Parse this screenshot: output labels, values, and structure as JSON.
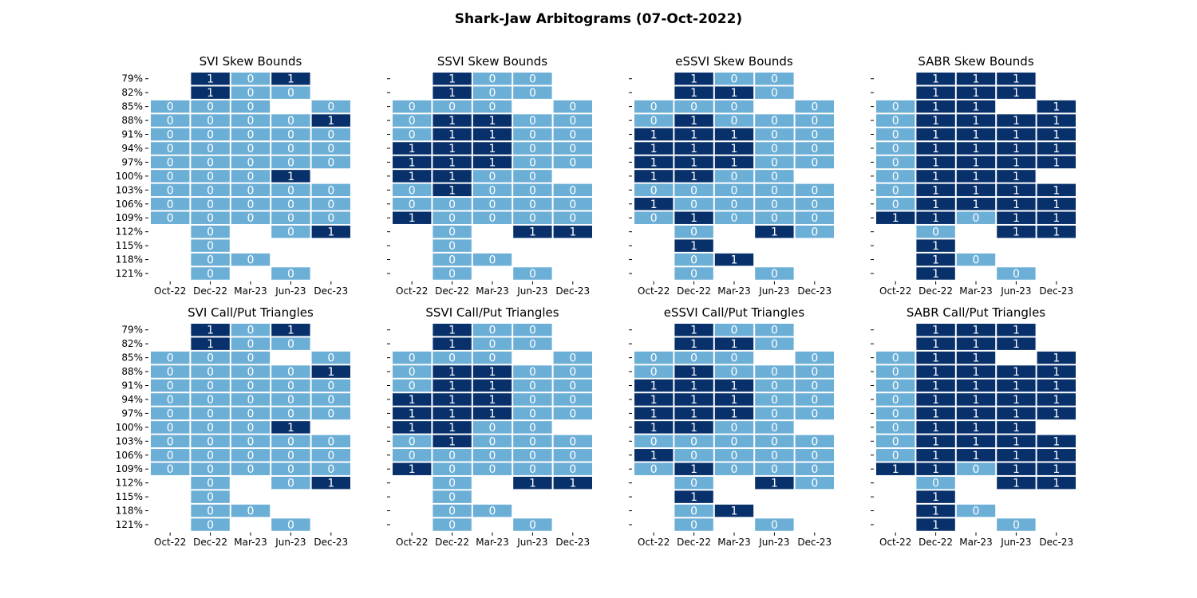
{
  "figure_title": "Shark-Jaw Arbitograms (07-Oct-2022)",
  "colors": {
    "zero": "#6baed6",
    "one": "#08306b",
    "zero_text": "#ffffff",
    "one_text": "#ffffff"
  },
  "chart_data": [
    {
      "type": "heatmap",
      "title": "SVI Skew Bounds",
      "xlabel": "",
      "ylabel": "",
      "x": [
        "Oct-22",
        "Dec-22",
        "Mar-23",
        "Jun-23",
        "Dec-23"
      ],
      "y": [
        "79%",
        "82%",
        "85%",
        "88%",
        "91%",
        "94%",
        "97%",
        "100%",
        "103%",
        "106%",
        "109%",
        "112%",
        "115%",
        "118%",
        "121%"
      ],
      "show_y_labels": true,
      "values": [
        [
          null,
          1,
          0,
          1,
          null
        ],
        [
          null,
          1,
          0,
          0,
          null
        ],
        [
          0,
          0,
          0,
          null,
          0
        ],
        [
          0,
          0,
          0,
          0,
          1
        ],
        [
          0,
          0,
          0,
          0,
          0
        ],
        [
          0,
          0,
          0,
          0,
          0
        ],
        [
          0,
          0,
          0,
          0,
          0
        ],
        [
          0,
          0,
          0,
          1,
          null
        ],
        [
          0,
          0,
          0,
          0,
          0
        ],
        [
          0,
          0,
          0,
          0,
          0
        ],
        [
          0,
          0,
          0,
          0,
          0
        ],
        [
          null,
          0,
          null,
          0,
          1
        ],
        [
          null,
          0,
          null,
          null,
          null
        ],
        [
          null,
          0,
          0,
          null,
          null
        ],
        [
          null,
          0,
          null,
          0,
          null
        ]
      ]
    },
    {
      "type": "heatmap",
      "title": "SSVI Skew Bounds",
      "xlabel": "",
      "ylabel": "",
      "x": [
        "Oct-22",
        "Dec-22",
        "Mar-23",
        "Jun-23",
        "Dec-23"
      ],
      "y": [
        "79%",
        "82%",
        "85%",
        "88%",
        "91%",
        "94%",
        "97%",
        "100%",
        "103%",
        "106%",
        "109%",
        "112%",
        "115%",
        "118%",
        "121%"
      ],
      "show_y_labels": false,
      "values": [
        [
          null,
          1,
          0,
          0,
          null
        ],
        [
          null,
          1,
          0,
          0,
          null
        ],
        [
          0,
          0,
          0,
          null,
          0
        ],
        [
          0,
          1,
          1,
          0,
          0
        ],
        [
          0,
          1,
          1,
          0,
          0
        ],
        [
          1,
          1,
          1,
          0,
          0
        ],
        [
          1,
          1,
          1,
          0,
          0
        ],
        [
          1,
          1,
          0,
          0,
          null
        ],
        [
          0,
          1,
          0,
          0,
          0
        ],
        [
          0,
          0,
          0,
          0,
          0
        ],
        [
          1,
          0,
          0,
          0,
          0
        ],
        [
          null,
          0,
          null,
          1,
          1
        ],
        [
          null,
          0,
          null,
          null,
          null
        ],
        [
          null,
          0,
          0,
          null,
          null
        ],
        [
          null,
          0,
          null,
          0,
          null
        ]
      ]
    },
    {
      "type": "heatmap",
      "title": "eSSVI Skew Bounds",
      "xlabel": "",
      "ylabel": "",
      "x": [
        "Oct-22",
        "Dec-22",
        "Mar-23",
        "Jun-23",
        "Dec-23"
      ],
      "y": [
        "79%",
        "82%",
        "85%",
        "88%",
        "91%",
        "94%",
        "97%",
        "100%",
        "103%",
        "106%",
        "109%",
        "112%",
        "115%",
        "118%",
        "121%"
      ],
      "show_y_labels": false,
      "values": [
        [
          null,
          1,
          0,
          0,
          null
        ],
        [
          null,
          1,
          1,
          0,
          null
        ],
        [
          0,
          0,
          0,
          null,
          0
        ],
        [
          0,
          1,
          0,
          0,
          0
        ],
        [
          1,
          1,
          1,
          0,
          0
        ],
        [
          1,
          1,
          1,
          0,
          0
        ],
        [
          1,
          1,
          1,
          0,
          0
        ],
        [
          1,
          1,
          0,
          0,
          null
        ],
        [
          0,
          0,
          0,
          0,
          0
        ],
        [
          1,
          0,
          0,
          0,
          0
        ],
        [
          0,
          1,
          0,
          0,
          0
        ],
        [
          null,
          0,
          null,
          1,
          0
        ],
        [
          null,
          1,
          null,
          null,
          null
        ],
        [
          null,
          0,
          1,
          null,
          null
        ],
        [
          null,
          0,
          null,
          0,
          null
        ]
      ]
    },
    {
      "type": "heatmap",
      "title": "SABR Skew Bounds",
      "xlabel": "",
      "ylabel": "",
      "x": [
        "Oct-22",
        "Dec-22",
        "Mar-23",
        "Jun-23",
        "Dec-23"
      ],
      "y": [
        "79%",
        "82%",
        "85%",
        "88%",
        "91%",
        "94%",
        "97%",
        "100%",
        "103%",
        "106%",
        "109%",
        "112%",
        "115%",
        "118%",
        "121%"
      ],
      "show_y_labels": false,
      "values": [
        [
          null,
          1,
          1,
          1,
          null
        ],
        [
          null,
          1,
          1,
          1,
          null
        ],
        [
          0,
          1,
          1,
          null,
          1
        ],
        [
          0,
          1,
          1,
          1,
          1
        ],
        [
          0,
          1,
          1,
          1,
          1
        ],
        [
          0,
          1,
          1,
          1,
          1
        ],
        [
          0,
          1,
          1,
          1,
          1
        ],
        [
          0,
          1,
          1,
          1,
          null
        ],
        [
          0,
          1,
          1,
          1,
          1
        ],
        [
          0,
          1,
          1,
          1,
          1
        ],
        [
          1,
          1,
          0,
          1,
          1
        ],
        [
          null,
          0,
          null,
          1,
          1
        ],
        [
          null,
          1,
          null,
          null,
          null
        ],
        [
          null,
          1,
          0,
          null,
          null
        ],
        [
          null,
          1,
          null,
          0,
          null
        ]
      ]
    },
    {
      "type": "heatmap",
      "title": "SVI Call/Put Triangles",
      "xlabel": "",
      "ylabel": "",
      "x": [
        "Oct-22",
        "Dec-22",
        "Mar-23",
        "Jun-23",
        "Dec-23"
      ],
      "y": [
        "79%",
        "82%",
        "85%",
        "88%",
        "91%",
        "94%",
        "97%",
        "100%",
        "103%",
        "106%",
        "109%",
        "112%",
        "115%",
        "118%",
        "121%"
      ],
      "show_y_labels": true,
      "values": [
        [
          null,
          1,
          0,
          1,
          null
        ],
        [
          null,
          1,
          0,
          0,
          null
        ],
        [
          0,
          0,
          0,
          null,
          0
        ],
        [
          0,
          0,
          0,
          0,
          1
        ],
        [
          0,
          0,
          0,
          0,
          0
        ],
        [
          0,
          0,
          0,
          0,
          0
        ],
        [
          0,
          0,
          0,
          0,
          0
        ],
        [
          0,
          0,
          0,
          1,
          null
        ],
        [
          0,
          0,
          0,
          0,
          0
        ],
        [
          0,
          0,
          0,
          0,
          0
        ],
        [
          0,
          0,
          0,
          0,
          0
        ],
        [
          null,
          0,
          null,
          0,
          1
        ],
        [
          null,
          0,
          null,
          null,
          null
        ],
        [
          null,
          0,
          0,
          null,
          null
        ],
        [
          null,
          0,
          null,
          0,
          null
        ]
      ]
    },
    {
      "type": "heatmap",
      "title": "SSVI Call/Put Triangles",
      "xlabel": "",
      "ylabel": "",
      "x": [
        "Oct-22",
        "Dec-22",
        "Mar-23",
        "Jun-23",
        "Dec-23"
      ],
      "y": [
        "79%",
        "82%",
        "85%",
        "88%",
        "91%",
        "94%",
        "97%",
        "100%",
        "103%",
        "106%",
        "109%",
        "112%",
        "115%",
        "118%",
        "121%"
      ],
      "show_y_labels": false,
      "values": [
        [
          null,
          1,
          0,
          0,
          null
        ],
        [
          null,
          1,
          0,
          0,
          null
        ],
        [
          0,
          0,
          0,
          null,
          0
        ],
        [
          0,
          1,
          1,
          0,
          0
        ],
        [
          0,
          1,
          1,
          0,
          0
        ],
        [
          1,
          1,
          1,
          0,
          0
        ],
        [
          1,
          1,
          1,
          0,
          0
        ],
        [
          1,
          1,
          0,
          0,
          null
        ],
        [
          0,
          1,
          0,
          0,
          0
        ],
        [
          0,
          0,
          0,
          0,
          0
        ],
        [
          1,
          0,
          0,
          0,
          0
        ],
        [
          null,
          0,
          null,
          1,
          1
        ],
        [
          null,
          0,
          null,
          null,
          null
        ],
        [
          null,
          0,
          0,
          null,
          null
        ],
        [
          null,
          0,
          null,
          0,
          null
        ]
      ]
    },
    {
      "type": "heatmap",
      "title": "eSSVI Call/Put Triangles",
      "xlabel": "",
      "ylabel": "",
      "x": [
        "Oct-22",
        "Dec-22",
        "Mar-23",
        "Jun-23",
        "Dec-23"
      ],
      "y": [
        "79%",
        "82%",
        "85%",
        "88%",
        "91%",
        "94%",
        "97%",
        "100%",
        "103%",
        "106%",
        "109%",
        "112%",
        "115%",
        "118%",
        "121%"
      ],
      "show_y_labels": false,
      "values": [
        [
          null,
          1,
          0,
          0,
          null
        ],
        [
          null,
          1,
          1,
          0,
          null
        ],
        [
          0,
          0,
          0,
          null,
          0
        ],
        [
          0,
          1,
          0,
          0,
          0
        ],
        [
          1,
          1,
          1,
          0,
          0
        ],
        [
          1,
          1,
          1,
          0,
          0
        ],
        [
          1,
          1,
          1,
          0,
          0
        ],
        [
          1,
          1,
          0,
          0,
          null
        ],
        [
          0,
          0,
          0,
          0,
          0
        ],
        [
          1,
          0,
          0,
          0,
          0
        ],
        [
          0,
          1,
          0,
          0,
          0
        ],
        [
          null,
          0,
          null,
          1,
          0
        ],
        [
          null,
          1,
          null,
          null,
          null
        ],
        [
          null,
          0,
          1,
          null,
          null
        ],
        [
          null,
          0,
          null,
          0,
          null
        ]
      ]
    },
    {
      "type": "heatmap",
      "title": "SABR Call/Put Triangles",
      "xlabel": "",
      "ylabel": "",
      "x": [
        "Oct-22",
        "Dec-22",
        "Mar-23",
        "Jun-23",
        "Dec-23"
      ],
      "y": [
        "79%",
        "82%",
        "85%",
        "88%",
        "91%",
        "94%",
        "97%",
        "100%",
        "103%",
        "106%",
        "109%",
        "112%",
        "115%",
        "118%",
        "121%"
      ],
      "show_y_labels": false,
      "values": [
        [
          null,
          1,
          1,
          1,
          null
        ],
        [
          null,
          1,
          1,
          1,
          null
        ],
        [
          0,
          1,
          1,
          null,
          1
        ],
        [
          0,
          1,
          1,
          1,
          1
        ],
        [
          0,
          1,
          1,
          1,
          1
        ],
        [
          0,
          1,
          1,
          1,
          1
        ],
        [
          0,
          1,
          1,
          1,
          1
        ],
        [
          0,
          1,
          1,
          1,
          null
        ],
        [
          0,
          1,
          1,
          1,
          1
        ],
        [
          0,
          1,
          1,
          1,
          1
        ],
        [
          1,
          1,
          0,
          1,
          1
        ],
        [
          null,
          0,
          null,
          1,
          1
        ],
        [
          null,
          1,
          null,
          null,
          null
        ],
        [
          null,
          1,
          0,
          null,
          null
        ],
        [
          null,
          1,
          null,
          0,
          null
        ]
      ]
    }
  ]
}
